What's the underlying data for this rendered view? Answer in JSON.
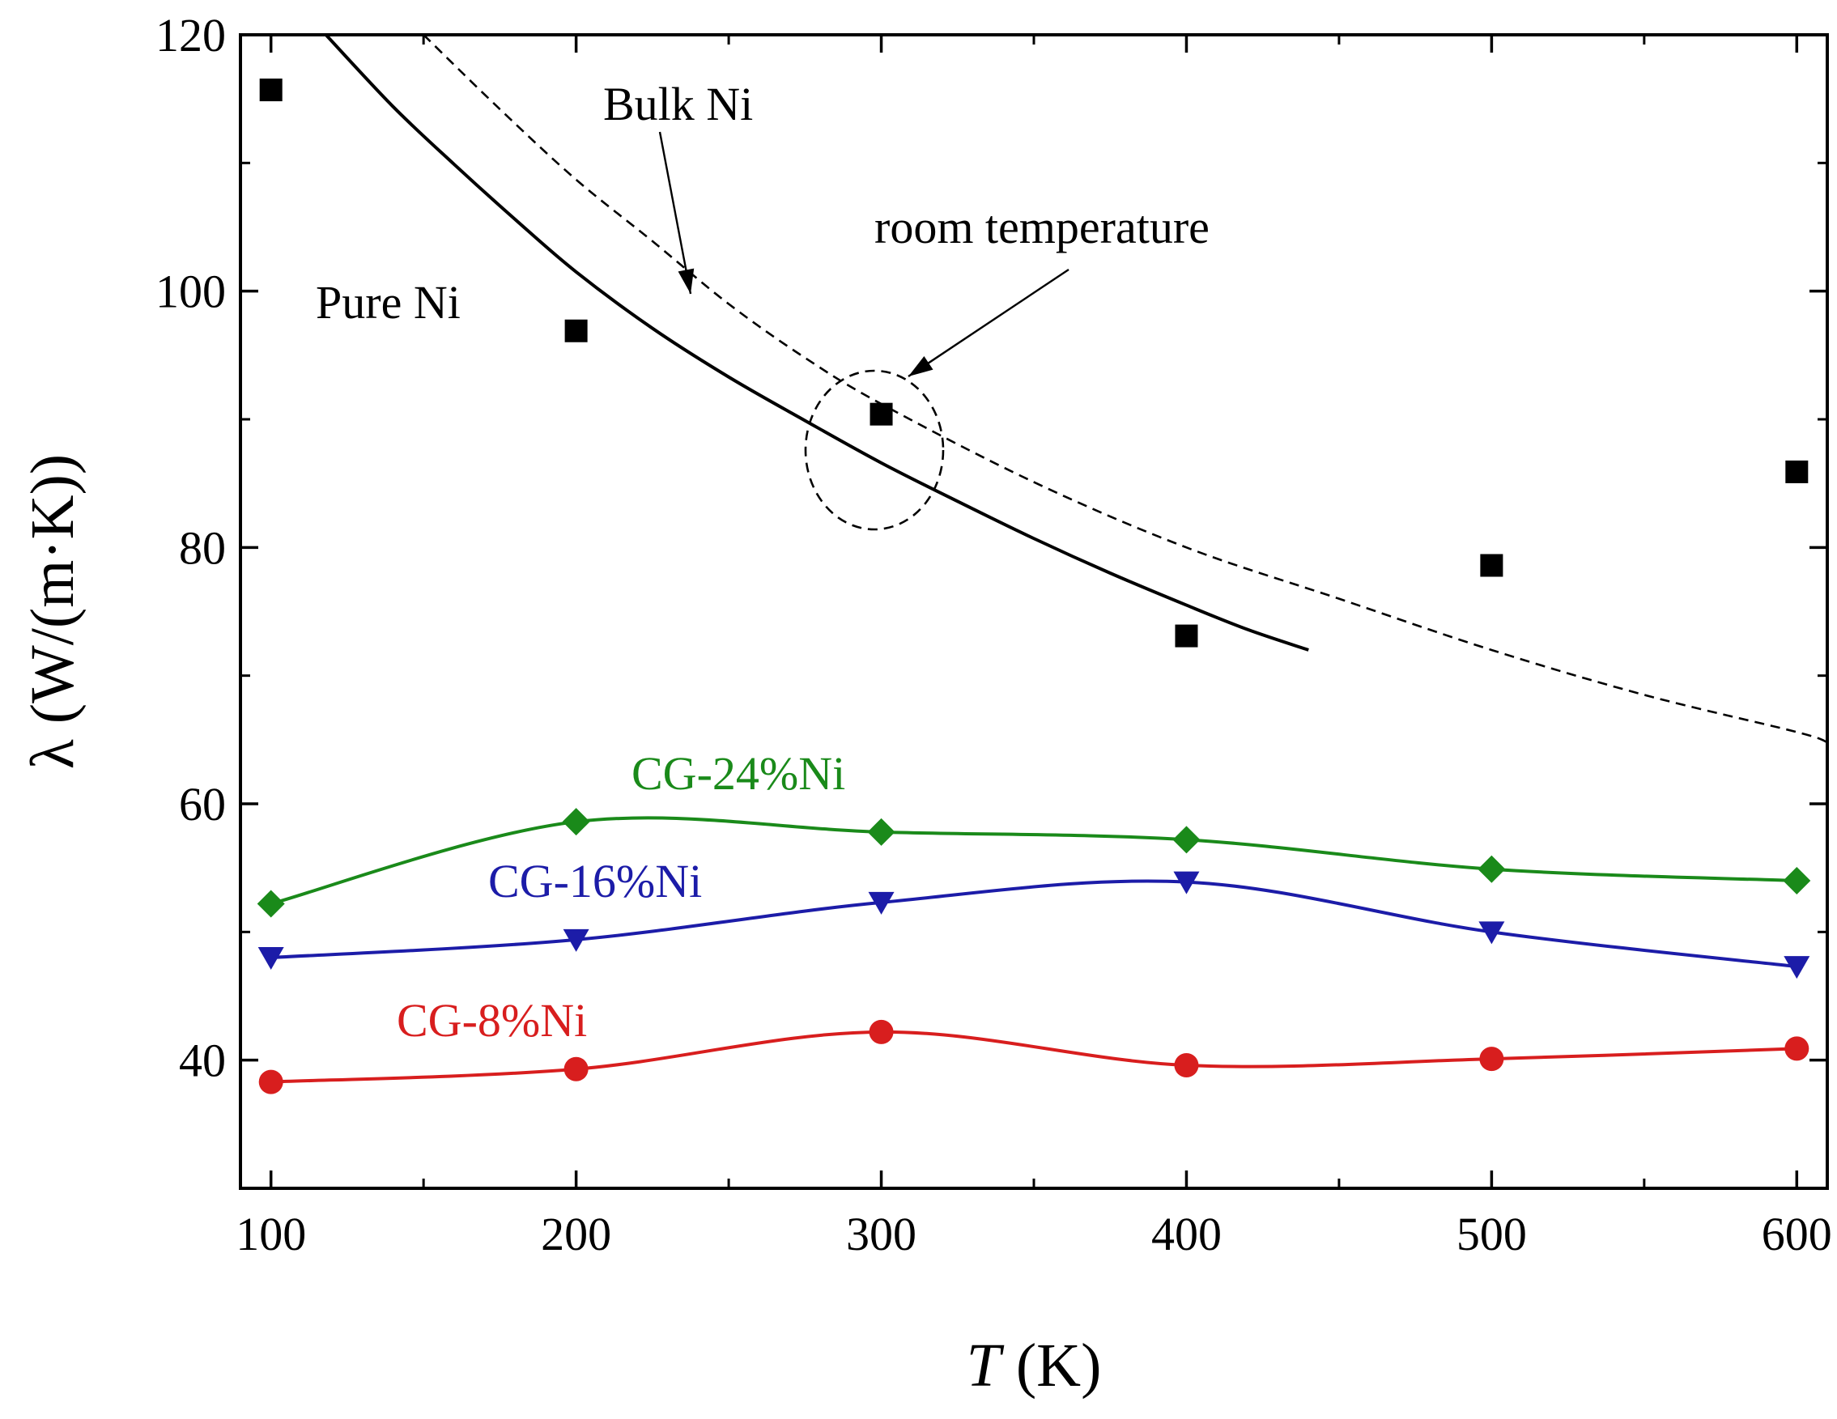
{
  "chart_data": {
    "type": "line",
    "xlabel_italic": "T",
    "xlabel_unit": " (K)",
    "ylabel": "λ (W/(m·K))",
    "xlim": [
      90,
      610
    ],
    "ylim": [
      30,
      120
    ],
    "x_ticks": [
      100,
      200,
      300,
      400,
      500,
      600
    ],
    "x_minor_ticks": [
      150,
      250,
      350,
      450,
      550
    ],
    "y_ticks": [
      40,
      60,
      80,
      100,
      120
    ],
    "y_minor_ticks": [
      50,
      70,
      90,
      110
    ],
    "series": [
      {
        "name": "CG-24%Ni",
        "color": "#1a8a1a",
        "marker": "diamond",
        "x": [
          100,
          200,
          300,
          400,
          500,
          600
        ],
        "y": [
          52.2,
          58.6,
          57.8,
          57.2,
          54.9,
          54.0
        ]
      },
      {
        "name": "CG-16%Ni",
        "color": "#1c1ca8",
        "marker": "triangle-down",
        "x": [
          100,
          200,
          300,
          400,
          500,
          600
        ],
        "y": [
          48.0,
          49.4,
          52.3,
          53.9,
          50.0,
          47.3
        ]
      },
      {
        "name": "CG-8%Ni",
        "color": "#d81e1e",
        "marker": "circle",
        "x": [
          100,
          200,
          300,
          400,
          500,
          600
        ],
        "y": [
          38.3,
          39.3,
          42.2,
          39.6,
          40.1,
          40.9
        ]
      },
      {
        "name": "Pure Ni",
        "color": "#000000",
        "marker": "square",
        "x": [
          100,
          200,
          300,
          400,
          500,
          600
        ],
        "y": [
          115.7,
          96.9,
          90.4,
          73.1,
          78.6,
          85.9
        ]
      }
    ],
    "reference_curves": [
      {
        "name": "Pure Ni",
        "style": "solid",
        "color": "#000000",
        "x": [
          118,
          140,
          160,
          180,
          200,
          225,
          250,
          275,
          300,
          325,
          350,
          375,
          400,
          420,
          440
        ],
        "y": [
          120,
          114.4,
          109.9,
          105.6,
          101.5,
          97.1,
          93.3,
          89.9,
          86.6,
          83.6,
          80.7,
          78.0,
          75.5,
          73.6,
          72.0
        ]
      },
      {
        "name": "Bulk Ni",
        "style": "dashed",
        "color": "#000000",
        "x": [
          150,
          175,
          200,
          225,
          250,
          275,
          300,
          350,
          400,
          450,
          500,
          550,
          600,
          610
        ],
        "y": [
          120,
          114.2,
          108.7,
          103.9,
          99.0,
          94.8,
          91.2,
          85.1,
          80.0,
          76.0,
          72.0,
          68.5,
          65.6,
          64.8
        ]
      }
    ],
    "annotations": [
      {
        "text": "Bulk Ni",
        "color": "#000000"
      },
      {
        "text": "Pure Ni",
        "color": "#000000"
      },
      {
        "text": "room temperature",
        "color": "#000000"
      },
      {
        "text": "CG-24%Ni",
        "color": "#1a8a1a"
      },
      {
        "text": "CG-16%Ni",
        "color": "#1c1ca8"
      },
      {
        "text": "CG-8%Ni",
        "color": "#d81e1e"
      }
    ]
  }
}
